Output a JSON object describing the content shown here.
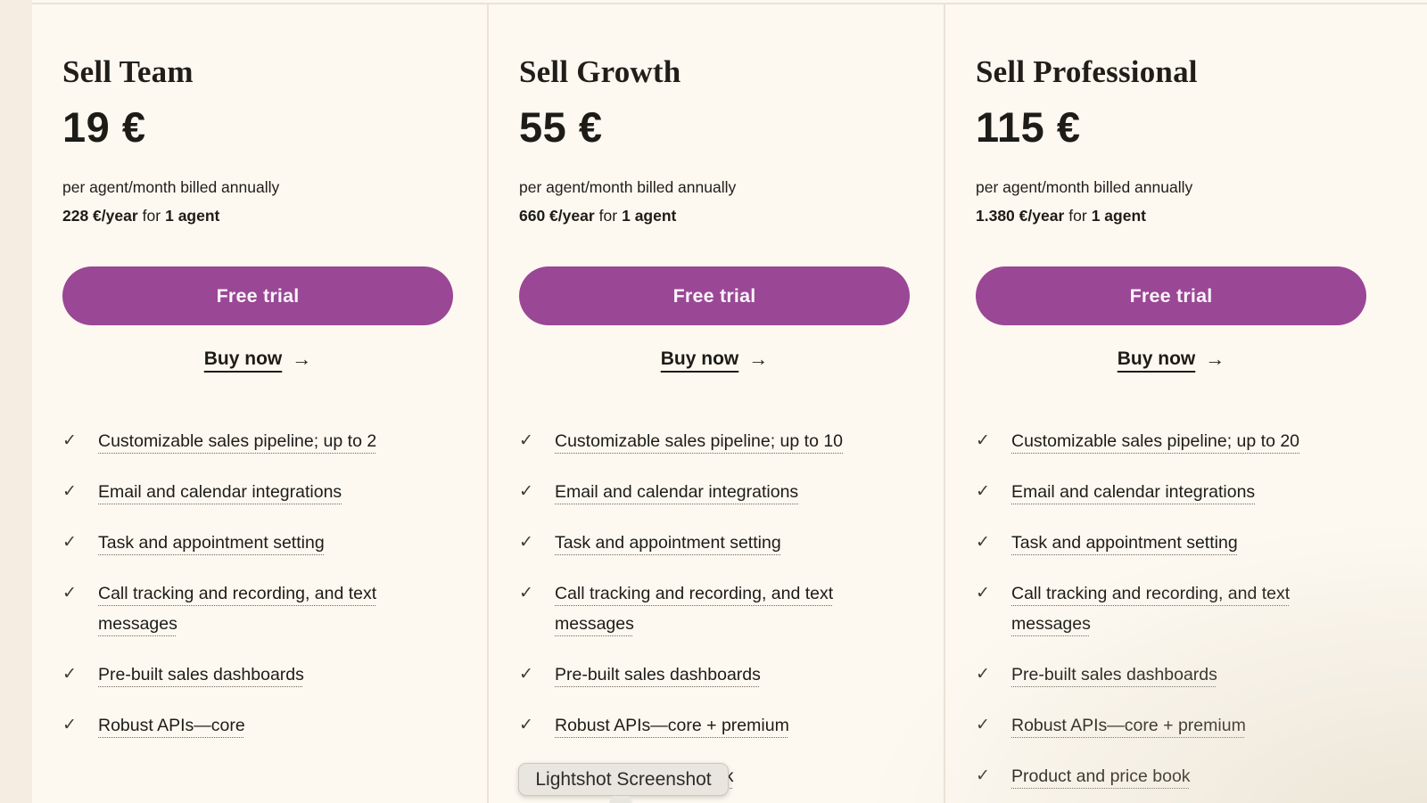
{
  "theme": {
    "background": "#FDF9F1",
    "left_strip": "#F5EDE2",
    "divider": "#EAE3D7",
    "accent_purple": "#9A4795",
    "text": "#1E1C17",
    "tooltip_background": "#E9E6E0"
  },
  "icons": {
    "check": "✓",
    "arrow_right": "→"
  },
  "plans": [
    {
      "name": "Sell Team",
      "price": "19 €",
      "billing_note": "per agent/month billed annually",
      "annual_price": "228 €/year",
      "annual_connector": "for",
      "annual_agents": "1 agent",
      "cta_label": "Free trial",
      "buy_label": "Buy now",
      "features": [
        "Customizable sales pipeline; up to 2",
        "Email and calendar integrations",
        "Task and appointment setting",
        "Call tracking and recording, and text messages",
        "Pre-built sales dashboards",
        "Robust APIs—core"
      ]
    },
    {
      "name": "Sell Growth",
      "price": "55 €",
      "billing_note": "per agent/month billed annually",
      "annual_price": "660 €/year",
      "annual_connector": "for",
      "annual_agents": "1 agent",
      "cta_label": "Free trial",
      "buy_label": "Buy now",
      "features": [
        "Customizable sales pipeline; up to 10",
        "Email and calendar integrations",
        "Task and appointment setting",
        "Call tracking and recording, and text messages",
        "Pre-built sales dashboards",
        "Robust APIs—core + premium",
        "Product and price book"
      ]
    },
    {
      "name": "Sell Professional",
      "price": "115 €",
      "billing_note": "per agent/month billed annually",
      "annual_price": "1.380 €/year",
      "annual_connector": "for",
      "annual_agents": "1 agent",
      "cta_label": "Free trial",
      "buy_label": "Buy now",
      "features": [
        "Customizable sales pipeline; up to 20",
        "Email and calendar integrations",
        "Task and appointment setting",
        "Call tracking and recording, and text messages",
        "Pre-built sales dashboards",
        "Robust APIs—core + premium",
        "Product and price book"
      ]
    }
  ],
  "tooltip": {
    "text": "Lightshot Screenshot"
  }
}
